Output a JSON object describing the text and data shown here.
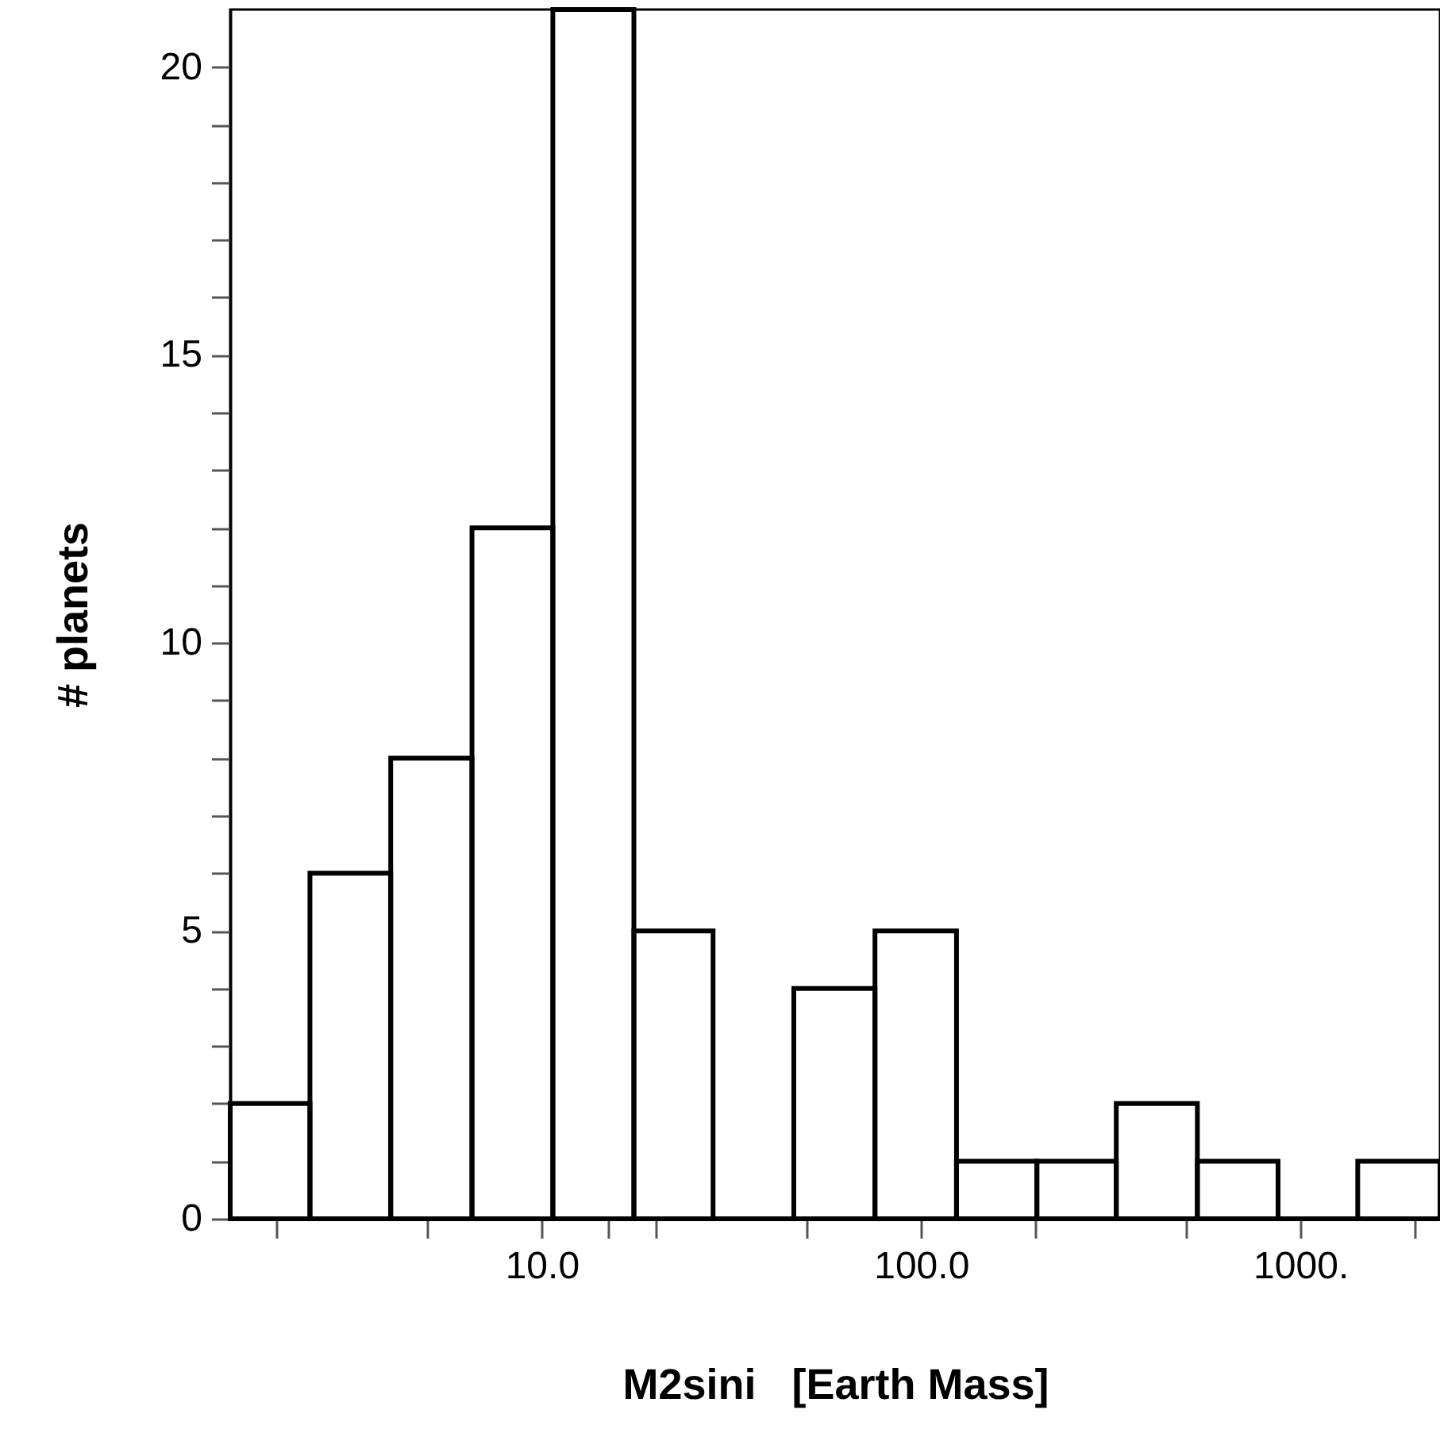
{
  "chart_data": {
    "type": "histogram",
    "xlabel": "M2sini   [Earth Mass]",
    "ylabel": "# planets",
    "bins": [
      1.51,
      2.45,
      4.0,
      6.55,
      10.7,
      17.5,
      28.3,
      46.2,
      75.6,
      124,
      202,
      327,
      535,
      873,
      1416,
      2333
    ],
    "values": [
      2,
      6,
      8,
      12,
      21,
      5,
      0,
      4,
      5,
      1,
      1,
      2,
      1,
      0,
      1
    ],
    "color": "#000000",
    "log": "x",
    "grid": false,
    "xlim": [
      1.51,
      2333
    ],
    "xticks": [
      {
        "value": 2,
        "label": null
      },
      {
        "value": 5,
        "label": null
      },
      {
        "value": 10,
        "label": "10.0"
      },
      {
        "value": 15,
        "label": null
      },
      {
        "value": 20,
        "label": null
      },
      {
        "value": 50,
        "label": null
      },
      {
        "value": 100,
        "label": "100.0"
      },
      {
        "value": 200,
        "label": null
      },
      {
        "value": 500,
        "label": null
      },
      {
        "value": 1000,
        "label": "1000."
      },
      {
        "value": 2000,
        "label": null
      }
    ],
    "ylim": [
      0,
      21
    ],
    "yticks": [
      0,
      {
        "value": 1,
        "label": null
      },
      {
        "value": 2,
        "label": null
      },
      {
        "value": 3,
        "label": null
      },
      {
        "value": 4,
        "label": null
      },
      5,
      {
        "value": 6,
        "label": null
      },
      {
        "value": 7,
        "label": null
      },
      {
        "value": 8,
        "label": null
      },
      {
        "value": 9,
        "label": null
      },
      10,
      {
        "value": 11,
        "label": null
      },
      {
        "value": 12,
        "label": null
      },
      {
        "value": 13,
        "label": null
      },
      {
        "value": 14,
        "label": null
      },
      15,
      {
        "value": 16,
        "label": null
      },
      {
        "value": 17,
        "label": null
      },
      {
        "value": 18,
        "label": null
      },
      {
        "value": 19,
        "label": null
      },
      20
    ]
  }
}
